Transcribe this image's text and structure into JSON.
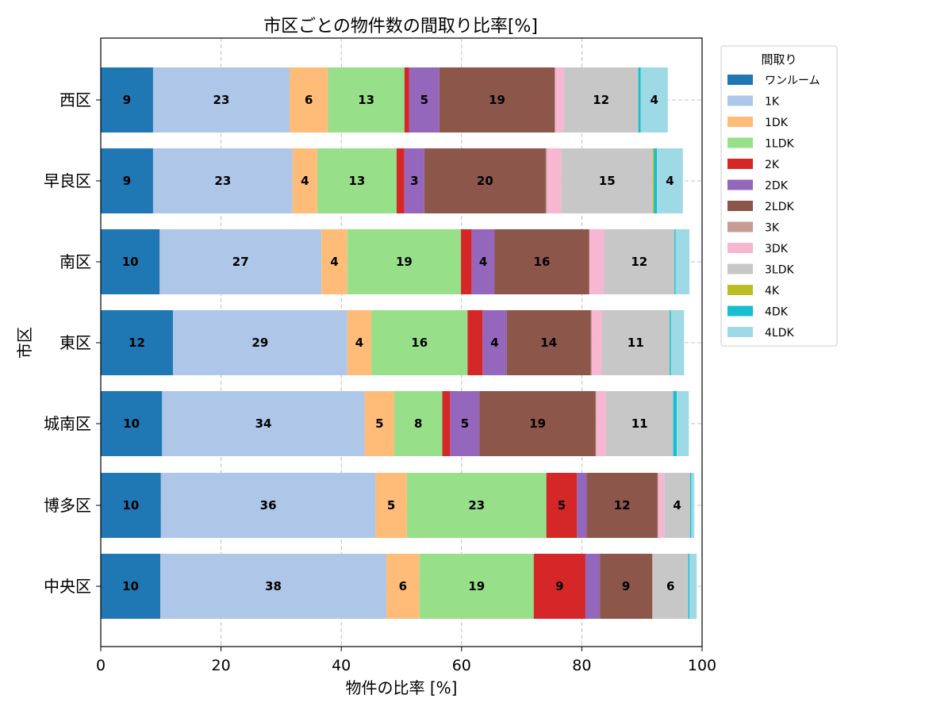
{
  "chart_data": {
    "type": "bar",
    "orientation": "horizontal",
    "stacked": true,
    "title": "市区ごとの物件数の間取り比率[%]",
    "xlabel": "物件の比率 [%]",
    "ylabel": "市区",
    "xlim": [
      0,
      100
    ],
    "xticks": [
      "0",
      "20",
      "40",
      "60",
      "80",
      "100"
    ],
    "grid": true,
    "legend_title": "間取り",
    "legend_position": "outside-right-top",
    "categories": [
      "西区",
      "早良区",
      "南区",
      "東区",
      "城南区",
      "博多区",
      "中央区"
    ],
    "series": [
      {
        "name": "ワンルーム",
        "color": "#1f77b4",
        "values": [
          8.7,
          8.7,
          9.8,
          12.0,
          10.2,
          10.0,
          9.9
        ]
      },
      {
        "name": "1K",
        "color": "#aec7e8",
        "values": [
          22.7,
          23.2,
          26.9,
          29.0,
          33.7,
          35.7,
          37.6
        ]
      },
      {
        "name": "1DK",
        "color": "#ffbb78",
        "values": [
          6.4,
          4.1,
          4.3,
          4.0,
          4.9,
          5.2,
          5.5
        ]
      },
      {
        "name": "1LDK",
        "color": "#98df8a",
        "values": [
          12.7,
          13.2,
          18.9,
          16.0,
          8.0,
          23.2,
          19.0
        ]
      },
      {
        "name": "2K",
        "color": "#d62728",
        "values": [
          0.8,
          1.3,
          1.8,
          2.5,
          1.3,
          5.1,
          8.6
        ]
      },
      {
        "name": "2DK",
        "color": "#9467bd",
        "values": [
          5.0,
          3.3,
          3.8,
          4.0,
          4.9,
          1.6,
          2.4
        ]
      },
      {
        "name": "2LDK",
        "color": "#8c564b",
        "values": [
          19.2,
          20.2,
          15.7,
          14.0,
          19.3,
          11.8,
          8.7
        ]
      },
      {
        "name": "3K",
        "color": "#c49c94",
        "values": [
          0.1,
          0.2,
          0.1,
          0.2,
          0.1,
          0.1,
          0.1
        ]
      },
      {
        "name": "3DK",
        "color": "#f7b6d2",
        "values": [
          1.4,
          2.4,
          2.4,
          1.6,
          1.6,
          1.0,
          0.0
        ]
      },
      {
        "name": "3LDK",
        "color": "#c7c7c7",
        "values": [
          12.4,
          15.2,
          11.7,
          11.3,
          11.2,
          4.3,
          5.9
        ]
      },
      {
        "name": "4K",
        "color": "#bcbd22",
        "values": [
          0.0,
          0.2,
          0.0,
          0.0,
          0.0,
          0.0,
          0.0
        ]
      },
      {
        "name": "4DK",
        "color": "#17becf",
        "values": [
          0.4,
          0.5,
          0.2,
          0.2,
          0.6,
          0.2,
          0.2
        ]
      },
      {
        "name": "4LDK",
        "color": "#9edae5",
        "values": [
          4.5,
          4.3,
          2.3,
          2.2,
          2.0,
          0.5,
          1.2
        ]
      }
    ],
    "data_labels": [
      [
        "9",
        "23",
        "6",
        "13",
        "",
        "5",
        "19",
        "",
        "",
        "12",
        "",
        "",
        "4"
      ],
      [
        "9",
        "23",
        "4",
        "13",
        "",
        "3",
        "20",
        "",
        "",
        "15",
        "",
        "",
        "4"
      ],
      [
        "10",
        "27",
        "4",
        "19",
        "",
        "4",
        "16",
        "",
        "",
        "12",
        "",
        "",
        ""
      ],
      [
        "12",
        "29",
        "4",
        "16",
        "",
        "4",
        "14",
        "",
        "",
        "11",
        "",
        "",
        ""
      ],
      [
        "10",
        "34",
        "5",
        "8",
        "",
        "5",
        "19",
        "",
        "",
        "11",
        "",
        "",
        ""
      ],
      [
        "10",
        "36",
        "5",
        "23",
        "5",
        "",
        "12",
        "",
        "",
        "4",
        "",
        "",
        ""
      ],
      [
        "10",
        "38",
        "6",
        "19",
        "9",
        "",
        "9",
        "",
        "",
        "6",
        "",
        "",
        ""
      ]
    ]
  }
}
